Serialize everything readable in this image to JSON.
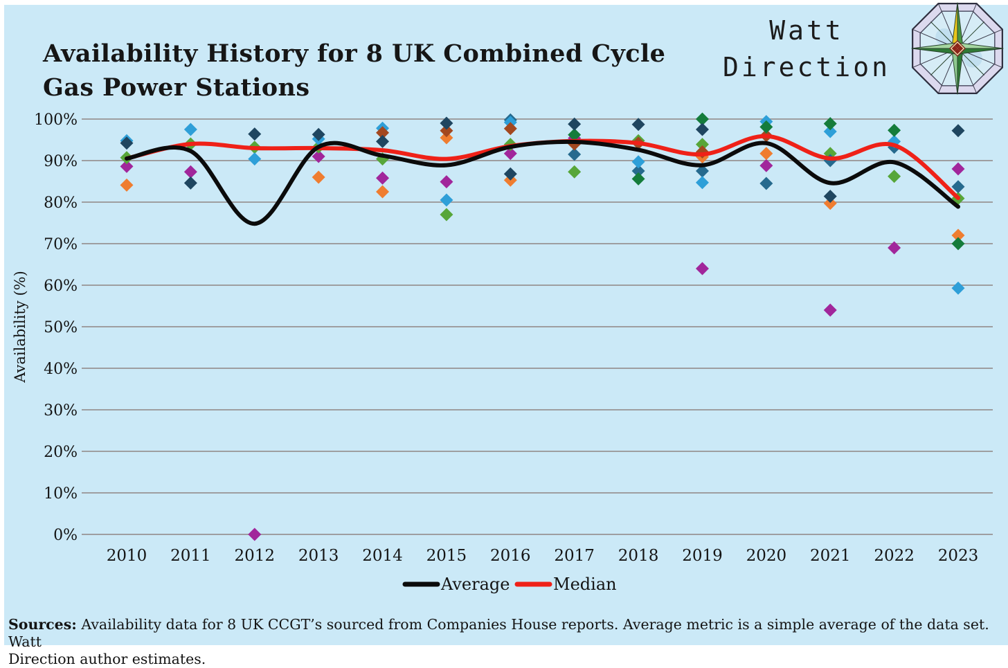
{
  "title": {
    "line1": "Availability History for 8 UK Combined Cycle",
    "line2": "Gas Power Stations"
  },
  "logo": {
    "line1": "Watt",
    "line2": "Direction"
  },
  "footer": {
    "sources_label": "Sources:",
    "line1_rest": " Availability data for 8 UK CCGT’s  sourced from Companies House reports. Average metric is a simple average of the data set. Watt",
    "line2": "Direction author estimates."
  },
  "chart_data": {
    "type": "scatter",
    "title": "Availability History for 8 UK Combined Cycle Gas Power Stations",
    "xlabel": "",
    "ylabel": "Availability (%)",
    "x": [
      2010,
      2011,
      2012,
      2013,
      2014,
      2015,
      2016,
      2017,
      2018,
      2019,
      2020,
      2021,
      2022,
      2023
    ],
    "ylim": [
      0,
      100
    ],
    "grid": true,
    "background": "#cbe9f7",
    "gridline_color": "#9e9ea0",
    "yticks": [
      {
        "value": 100,
        "label": "100%"
      },
      {
        "value": 90,
        "label": "90%"
      },
      {
        "value": 80,
        "label": "80%"
      },
      {
        "value": 70,
        "label": "70%"
      },
      {
        "value": 60,
        "label": "60%"
      },
      {
        "value": 50,
        "label": "50%"
      },
      {
        "value": 40,
        "label": "40%"
      },
      {
        "value": 30,
        "label": "30%"
      },
      {
        "value": 20,
        "label": "20%"
      },
      {
        "value": 10,
        "label": "10%"
      },
      {
        "value": 0,
        "label": "0%"
      }
    ],
    "legend_position": "bottom",
    "legend": [
      {
        "label": "Average",
        "color": "#0b0b0b"
      },
      {
        "label": "Median",
        "color": "#ef2118"
      }
    ],
    "lines": [
      {
        "name": "Median",
        "color": "#ef2118",
        "values": [
          90.5,
          94.0,
          93.0,
          93.0,
          92.5,
          90.4,
          93.5,
          94.7,
          94.2,
          91.5,
          95.9,
          90.5,
          93.7,
          81.0
        ]
      },
      {
        "name": "Average",
        "color": "#0b0b0b",
        "values": [
          90.5,
          92.3,
          74.8,
          93.3,
          91.2,
          88.9,
          93.3,
          94.5,
          92.6,
          88.9,
          94.2,
          84.6,
          89.6,
          78.9
        ]
      }
    ],
    "stations": [
      {
        "name": "station-magenta",
        "color": "#a1269b",
        "points": [
          [
            2010,
            88.6
          ],
          [
            2011,
            87.3
          ],
          [
            2012,
            0.0
          ],
          [
            2013,
            91.0
          ],
          [
            2014,
            85.8
          ],
          [
            2015,
            84.9
          ],
          [
            2016,
            91.7
          ],
          [
            2017,
            95.4
          ],
          [
            2019,
            64.0
          ],
          [
            2020,
            88.8
          ],
          [
            2021,
            54.0
          ],
          [
            2022,
            69.0
          ],
          [
            2023,
            88.0
          ]
        ]
      },
      {
        "name": "station-green",
        "color": "#57a639",
        "points": [
          [
            2010,
            90.7
          ],
          [
            2011,
            94.0
          ],
          [
            2012,
            93.2
          ],
          [
            2013,
            93.3
          ],
          [
            2014,
            90.4
          ],
          [
            2015,
            77.0
          ],
          [
            2016,
            93.9
          ],
          [
            2017,
            87.3
          ],
          [
            2018,
            94.8
          ],
          [
            2019,
            93.9
          ],
          [
            2021,
            91.7
          ],
          [
            2022,
            86.2
          ],
          [
            2023,
            80.9
          ]
        ]
      },
      {
        "name": "station-orange",
        "color": "#ef7d30",
        "points": [
          [
            2010,
            84.1
          ],
          [
            2013,
            86.0
          ],
          [
            2014,
            82.5
          ],
          [
            2015,
            95.5
          ],
          [
            2016,
            85.3
          ],
          [
            2019,
            90.9
          ],
          [
            2020,
            91.7
          ],
          [
            2021,
            79.7
          ],
          [
            2023,
            72.0
          ]
        ]
      },
      {
        "name": "station-teal",
        "color": "#266a8e",
        "points": [
          [
            2016,
            99.8
          ],
          [
            2017,
            91.5
          ],
          [
            2018,
            87.5
          ],
          [
            2019,
            87.5
          ],
          [
            2020,
            84.5
          ],
          [
            2021,
            90.0
          ],
          [
            2022,
            93.2
          ],
          [
            2023,
            83.7
          ]
        ]
      },
      {
        "name": "station-lightblue",
        "color": "#2e9fd8",
        "points": [
          [
            2010,
            94.8
          ],
          [
            2011,
            97.5
          ],
          [
            2012,
            90.4
          ],
          [
            2013,
            95.2
          ],
          [
            2014,
            97.8
          ],
          [
            2015,
            80.5
          ],
          [
            2016,
            99.2
          ],
          [
            2018,
            89.7
          ],
          [
            2019,
            84.7
          ],
          [
            2020,
            99.4
          ],
          [
            2021,
            97.0
          ],
          [
            2022,
            94.6
          ],
          [
            2023,
            59.3
          ]
        ]
      },
      {
        "name": "station-brown",
        "color": "#a3481f",
        "points": [
          [
            2014,
            96.7
          ],
          [
            2015,
            97.2
          ],
          [
            2016,
            97.7
          ],
          [
            2017,
            94.0
          ],
          [
            2018,
            94.2
          ],
          [
            2019,
            92.1
          ],
          [
            2020,
            96.0
          ]
        ]
      },
      {
        "name": "station-darkgreen",
        "color": "#147c3b",
        "points": [
          [
            2017,
            96.2
          ],
          [
            2018,
            85.6
          ],
          [
            2019,
            100.0
          ],
          [
            2020,
            98.1
          ],
          [
            2021,
            98.9
          ],
          [
            2022,
            97.3
          ],
          [
            2023,
            70.0
          ]
        ]
      },
      {
        "name": "station-navy",
        "color": "#1f4660",
        "points": [
          [
            2010,
            94.2
          ],
          [
            2011,
            84.6
          ],
          [
            2012,
            96.4
          ],
          [
            2013,
            96.3
          ],
          [
            2014,
            94.6
          ],
          [
            2015,
            99.0
          ],
          [
            2016,
            86.8
          ],
          [
            2017,
            98.8
          ],
          [
            2018,
            98.7
          ],
          [
            2019,
            97.5
          ],
          [
            2021,
            81.4
          ],
          [
            2023,
            97.2
          ]
        ]
      }
    ]
  }
}
